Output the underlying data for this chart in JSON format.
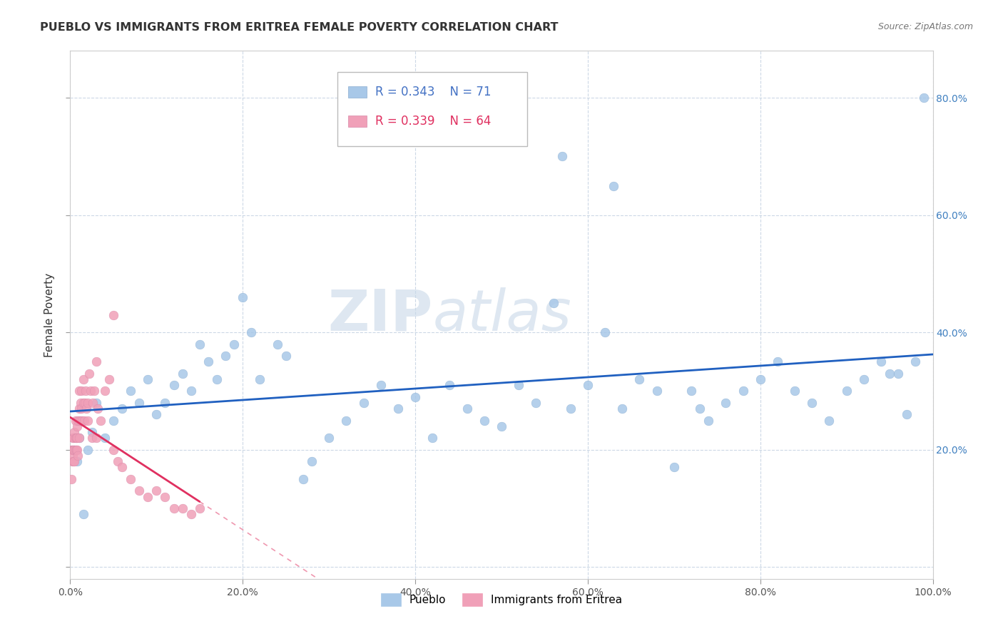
{
  "title": "PUEBLO VS IMMIGRANTS FROM ERITREA FEMALE POVERTY CORRELATION CHART",
  "source": "Source: ZipAtlas.com",
  "ylabel": "Female Poverty",
  "watermark_zip": "ZIP",
  "watermark_atlas": "atlas",
  "legend_pueblo": "Pueblo",
  "legend_eritrea": "Immigrants from Eritrea",
  "R_pueblo": 0.343,
  "N_pueblo": 71,
  "R_eritrea": 0.339,
  "N_eritrea": 64,
  "pueblo_color": "#a8c8e8",
  "eritrea_color": "#f0a0b8",
  "pueblo_line_color": "#2060c0",
  "eritrea_line_color": "#e03060",
  "xlim": [
    0.0,
    1.0
  ],
  "ylim": [
    -0.02,
    0.88
  ],
  "xticks": [
    0.0,
    0.2,
    0.4,
    0.6,
    0.8,
    1.0
  ],
  "yticks": [
    0.0,
    0.2,
    0.4,
    0.6,
    0.8
  ],
  "xticklabels": [
    "0.0%",
    "20.0%",
    "40.0%",
    "60.0%",
    "80.0%",
    "100.0%"
  ],
  "yticklabels_right": [
    "",
    "20.0%",
    "40.0%",
    "60.0%",
    "80.0%"
  ],
  "pueblo_x": [
    0.005,
    0.008,
    0.01,
    0.015,
    0.02,
    0.025,
    0.03,
    0.04,
    0.05,
    0.06,
    0.07,
    0.08,
    0.09,
    0.1,
    0.11,
    0.12,
    0.13,
    0.14,
    0.16,
    0.17,
    0.18,
    0.19,
    0.21,
    0.22,
    0.24,
    0.25,
    0.27,
    0.28,
    0.3,
    0.32,
    0.34,
    0.36,
    0.38,
    0.4,
    0.42,
    0.44,
    0.46,
    0.48,
    0.5,
    0.52,
    0.54,
    0.56,
    0.58,
    0.6,
    0.62,
    0.64,
    0.66,
    0.68,
    0.7,
    0.72,
    0.73,
    0.74,
    0.76,
    0.78,
    0.8,
    0.82,
    0.84,
    0.86,
    0.88,
    0.9,
    0.92,
    0.94,
    0.95,
    0.96,
    0.97,
    0.98,
    0.99,
    0.57,
    0.63,
    0.15,
    0.2
  ],
  "pueblo_y": [
    0.2,
    0.18,
    0.22,
    0.09,
    0.2,
    0.23,
    0.28,
    0.22,
    0.25,
    0.27,
    0.3,
    0.28,
    0.32,
    0.26,
    0.28,
    0.31,
    0.33,
    0.3,
    0.35,
    0.32,
    0.36,
    0.38,
    0.4,
    0.32,
    0.38,
    0.36,
    0.15,
    0.18,
    0.22,
    0.25,
    0.28,
    0.31,
    0.27,
    0.29,
    0.22,
    0.31,
    0.27,
    0.25,
    0.24,
    0.31,
    0.28,
    0.45,
    0.27,
    0.31,
    0.4,
    0.27,
    0.32,
    0.3,
    0.17,
    0.3,
    0.27,
    0.25,
    0.28,
    0.3,
    0.32,
    0.35,
    0.3,
    0.28,
    0.25,
    0.3,
    0.32,
    0.35,
    0.33,
    0.33,
    0.26,
    0.35,
    0.8,
    0.7,
    0.65,
    0.38,
    0.46
  ],
  "eritrea_x": [
    0.001,
    0.001,
    0.002,
    0.002,
    0.003,
    0.003,
    0.003,
    0.004,
    0.004,
    0.004,
    0.005,
    0.005,
    0.005,
    0.006,
    0.006,
    0.006,
    0.007,
    0.007,
    0.008,
    0.008,
    0.008,
    0.009,
    0.009,
    0.01,
    0.01,
    0.01,
    0.01,
    0.012,
    0.012,
    0.013,
    0.013,
    0.014,
    0.015,
    0.015,
    0.016,
    0.017,
    0.018,
    0.019,
    0.02,
    0.02,
    0.022,
    0.024,
    0.025,
    0.026,
    0.028,
    0.03,
    0.032,
    0.035,
    0.04,
    0.045,
    0.05,
    0.055,
    0.06,
    0.07,
    0.08,
    0.09,
    0.1,
    0.11,
    0.12,
    0.13,
    0.14,
    0.15,
    0.05,
    0.03
  ],
  "eritrea_y": [
    0.2,
    0.15,
    0.2,
    0.18,
    0.2,
    0.22,
    0.19,
    0.2,
    0.22,
    0.18,
    0.2,
    0.23,
    0.18,
    0.2,
    0.22,
    0.25,
    0.2,
    0.22,
    0.24,
    0.2,
    0.22,
    0.25,
    0.19,
    0.22,
    0.25,
    0.27,
    0.3,
    0.28,
    0.25,
    0.3,
    0.27,
    0.25,
    0.32,
    0.28,
    0.25,
    0.28,
    0.3,
    0.27,
    0.25,
    0.28,
    0.33,
    0.3,
    0.22,
    0.28,
    0.3,
    0.35,
    0.27,
    0.25,
    0.3,
    0.32,
    0.2,
    0.18,
    0.17,
    0.15,
    0.13,
    0.12,
    0.13,
    0.12,
    0.1,
    0.1,
    0.09,
    0.1,
    0.43,
    0.22
  ]
}
